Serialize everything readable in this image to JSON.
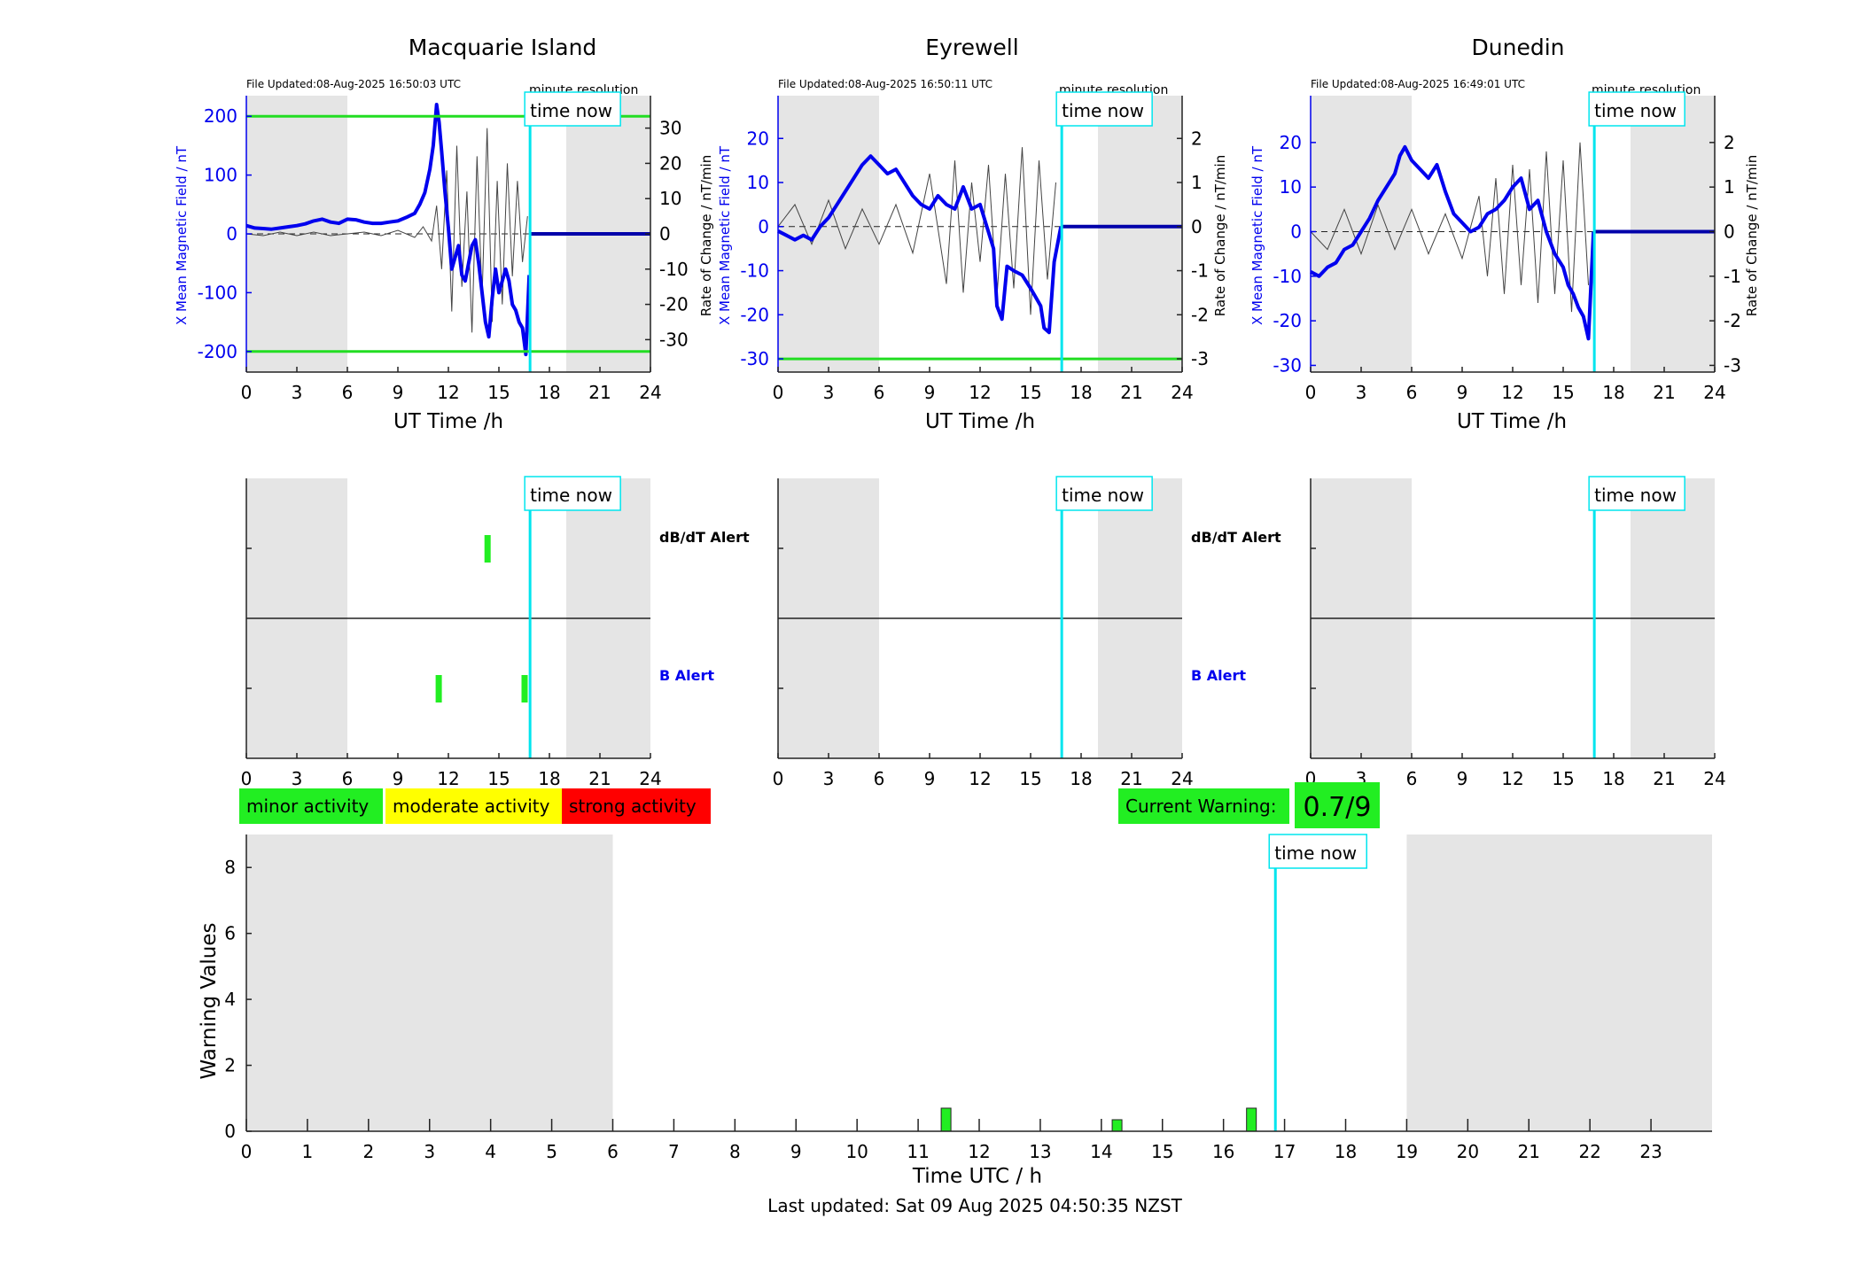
{
  "colors": {
    "field": "#0000ee",
    "rate": "#444444",
    "now": "#00e5ee",
    "limit": "#22dd22",
    "night": "#e5e5e5",
    "minor": "#22ee22",
    "moderate": "#ffff00",
    "strong": "#ff0000"
  },
  "labels": {
    "time_now": "time now",
    "minute_resolution": "minute resolution",
    "ut_time": "UT Time /h",
    "y_left": "X Mean Magnetic Field / nT",
    "y_right": "Rate of Change / nT/min",
    "dbdt_alert": "dB/dT Alert",
    "b_alert": "B Alert",
    "minor_activity": "minor activity",
    "moderate_activity": "moderate activity",
    "strong_activity": "strong activity",
    "current_warning": "Current Warning:",
    "current_warning_value": "0.7/9",
    "bottom_xlabel": "Time UTC / h",
    "bottom_ylabel": "Warning Values",
    "last_updated": "Last updated: Sat 09 Aug 2025 04:50:35 NZST"
  },
  "chart_data": [
    {
      "type": "line",
      "title": "Macquarie Island",
      "file_updated": "File Updated:08-Aug-2025 16:50:03 UTC",
      "xlim": [
        0,
        24
      ],
      "x_ticks": [
        0,
        3,
        6,
        9,
        12,
        15,
        18,
        21,
        24
      ],
      "ylim": [
        -235,
        235
      ],
      "y_ticks": [
        -200,
        -100,
        0,
        100,
        200
      ],
      "y2lim": [
        -39.2,
        39.2
      ],
      "y2_ticks": [
        -30,
        -20,
        -10,
        0,
        10,
        20,
        30
      ],
      "limit_lines": [
        200,
        -200
      ],
      "night_bands": [
        [
          0,
          6
        ],
        [
          19,
          24
        ]
      ],
      "now_hour": 16.85,
      "field_series": {
        "name": "X Mean Magnetic Field",
        "x": [
          0,
          0.5,
          1,
          1.5,
          2,
          2.5,
          3,
          3.5,
          4,
          4.5,
          5,
          5.5,
          6,
          6.5,
          7,
          7.5,
          8,
          8.5,
          9,
          9.5,
          10,
          10.3,
          10.6,
          10.9,
          11.1,
          11.3,
          11.45,
          11.6,
          11.8,
          12,
          12.2,
          12.4,
          12.6,
          12.8,
          13,
          13.2,
          13.4,
          13.6,
          13.8,
          14,
          14.2,
          14.4,
          14.6,
          14.8,
          15,
          15.2,
          15.4,
          15.6,
          15.8,
          16,
          16.2,
          16.4,
          16.6,
          16.8
        ],
        "y": [
          14,
          10,
          9,
          8,
          10,
          12,
          14,
          17,
          22,
          25,
          20,
          18,
          25,
          24,
          20,
          18,
          18,
          20,
          22,
          28,
          35,
          50,
          70,
          110,
          150,
          220,
          190,
          140,
          70,
          10,
          -60,
          -40,
          -20,
          -70,
          -80,
          -50,
          -20,
          -10,
          -50,
          -100,
          -150,
          -175,
          -110,
          -60,
          -100,
          -80,
          -60,
          -80,
          -120,
          -130,
          -150,
          -160,
          -205,
          -70
        ]
      },
      "rate_series": {
        "name": "Rate of Change",
        "x": [
          0,
          1,
          2,
          3,
          4,
          5,
          6,
          7,
          8,
          9,
          10,
          10.5,
          11,
          11.3,
          11.6,
          11.9,
          12.2,
          12.5,
          12.8,
          13.1,
          13.4,
          13.7,
          14,
          14.3,
          14.6,
          14.9,
          15.2,
          15.5,
          15.8,
          16.1,
          16.4,
          16.7
        ],
        "y": [
          0,
          -0.5,
          0.5,
          -0.5,
          0.5,
          -0.5,
          0,
          0.5,
          -0.5,
          1,
          -1,
          2,
          -2,
          8,
          -10,
          18,
          -22,
          25,
          -15,
          12,
          -28,
          22,
          -18,
          30,
          -25,
          15,
          -20,
          20,
          -12,
          15,
          -8,
          5
        ]
      },
      "dbdt_alerts": [
        14.3
      ],
      "b_alerts": [
        11.4,
        16.5
      ]
    },
    {
      "type": "line",
      "title": "Eyrewell",
      "file_updated": "File Updated:08-Aug-2025 16:50:11 UTC",
      "xlim": [
        0,
        24
      ],
      "x_ticks": [
        0,
        3,
        6,
        9,
        12,
        15,
        18,
        21,
        24
      ],
      "ylim": [
        -33,
        29.7
      ],
      "y_ticks": [
        -30,
        -20,
        -10,
        0,
        10,
        20
      ],
      "y2lim": [
        -3.3,
        2.97
      ],
      "y2_ticks": [
        -3,
        -2,
        -1,
        0,
        1,
        2
      ],
      "limit_lines": [
        -30
      ],
      "night_bands": [
        [
          0,
          6
        ],
        [
          19,
          24
        ]
      ],
      "now_hour": 16.85,
      "field_series": {
        "name": "X Mean Magnetic Field",
        "x": [
          0,
          0.5,
          1,
          1.5,
          2,
          2.5,
          3,
          3.5,
          4,
          4.5,
          5,
          5.5,
          6,
          6.5,
          7,
          7.5,
          8,
          8.5,
          9,
          9.5,
          10,
          10.5,
          11,
          11.5,
          12,
          12.4,
          12.8,
          13,
          13.3,
          13.6,
          14,
          14.5,
          15,
          15.3,
          15.6,
          15.8,
          16.1,
          16.4,
          16.8
        ],
        "y": [
          -1,
          -2,
          -3,
          -2,
          -3,
          0,
          2,
          5,
          8,
          11,
          14,
          16,
          14,
          12,
          13,
          10,
          7,
          5,
          4,
          7,
          5,
          4,
          9,
          4,
          5,
          0,
          -5,
          -18,
          -21,
          -9,
          -10,
          -11,
          -14,
          -16,
          -18,
          -23,
          -24,
          -8,
          0
        ]
      },
      "rate_series": {
        "name": "Rate of Change",
        "x": [
          0,
          1,
          2,
          3,
          4,
          5,
          6,
          7,
          8,
          9,
          10,
          10.5,
          11,
          11.5,
          12,
          12.5,
          13,
          13.5,
          14,
          14.5,
          15,
          15.5,
          16,
          16.5
        ],
        "y": [
          0,
          0.5,
          -0.4,
          0.6,
          -0.5,
          0.4,
          -0.4,
          0.5,
          -0.6,
          1.2,
          -1.3,
          1.5,
          -1.5,
          1,
          -0.8,
          1.4,
          -1.6,
          1.2,
          -1.4,
          1.8,
          -2,
          1.5,
          -1.2,
          1
        ]
      },
      "dbdt_alerts": [],
      "b_alerts": []
    },
    {
      "type": "line",
      "title": "Dunedin",
      "file_updated": "File Updated:08-Aug-2025 16:49:01 UTC",
      "xlim": [
        0,
        24
      ],
      "x_ticks": [
        0,
        3,
        6,
        9,
        12,
        15,
        18,
        21,
        24
      ],
      "ylim": [
        -31.5,
        30.5
      ],
      "y_ticks": [
        -30,
        -20,
        -10,
        0,
        10,
        20
      ],
      "y2lim": [
        -3.15,
        3.05
      ],
      "y2_ticks": [
        -3,
        -2,
        -1,
        0,
        1,
        2
      ],
      "limit_lines": [],
      "night_bands": [
        [
          0,
          6
        ],
        [
          19,
          24
        ]
      ],
      "now_hour": 16.85,
      "field_series": {
        "name": "X Mean Magnetic Field",
        "x": [
          0,
          0.5,
          1,
          1.5,
          2,
          2.5,
          3,
          3.5,
          4,
          4.5,
          5,
          5.3,
          5.6,
          6,
          6.5,
          7,
          7.5,
          8,
          8.5,
          9,
          9.5,
          10,
          10.5,
          11,
          11.5,
          12,
          12.5,
          13,
          13.5,
          14,
          14.5,
          15,
          15.3,
          15.6,
          15.9,
          16.2,
          16.5,
          16.8
        ],
        "y": [
          -9,
          -10,
          -8,
          -7,
          -4,
          -3,
          0,
          3,
          7,
          10,
          13,
          17,
          19,
          16,
          14,
          12,
          15,
          9,
          4,
          2,
          0,
          1,
          4,
          5,
          7,
          10,
          12,
          5,
          7,
          0,
          -5,
          -8,
          -12,
          -14,
          -17,
          -19,
          -24,
          0
        ]
      },
      "rate_series": {
        "name": "Rate of Change",
        "x": [
          0,
          1,
          2,
          3,
          4,
          5,
          6,
          7,
          8,
          9,
          10,
          10.5,
          11,
          11.5,
          12,
          12.5,
          13,
          13.5,
          14,
          14.5,
          15,
          15.5,
          16,
          16.5
        ],
        "y": [
          0,
          -0.4,
          0.5,
          -0.5,
          0.6,
          -0.4,
          0.5,
          -0.5,
          0.4,
          -0.6,
          0.8,
          -1,
          1.2,
          -1.4,
          1.5,
          -1.2,
          1.4,
          -1.6,
          1.8,
          -1.4,
          1.6,
          -1.8,
          2,
          -1.2
        ]
      },
      "dbdt_alerts": [],
      "b_alerts": []
    },
    {
      "type": "bar",
      "title": "",
      "xlabel": "Time UTC / h",
      "ylabel": "Warning Values",
      "xlim": [
        0,
        24
      ],
      "x_ticks": [
        0,
        1,
        2,
        3,
        4,
        5,
        6,
        7,
        8,
        9,
        10,
        11,
        12,
        13,
        14,
        15,
        16,
        17,
        18,
        19,
        20,
        21,
        22,
        23
      ],
      "ylim": [
        0,
        9
      ],
      "y_ticks": [
        0,
        2,
        4,
        6,
        8
      ],
      "night_bands": [
        [
          0,
          6
        ],
        [
          19,
          24
        ]
      ],
      "now_hour": 16.85,
      "bars": [
        {
          "x": 11.45,
          "value": 0.7
        },
        {
          "x": 14.25,
          "value": 0.35
        },
        {
          "x": 16.45,
          "value": 0.7
        }
      ]
    }
  ]
}
